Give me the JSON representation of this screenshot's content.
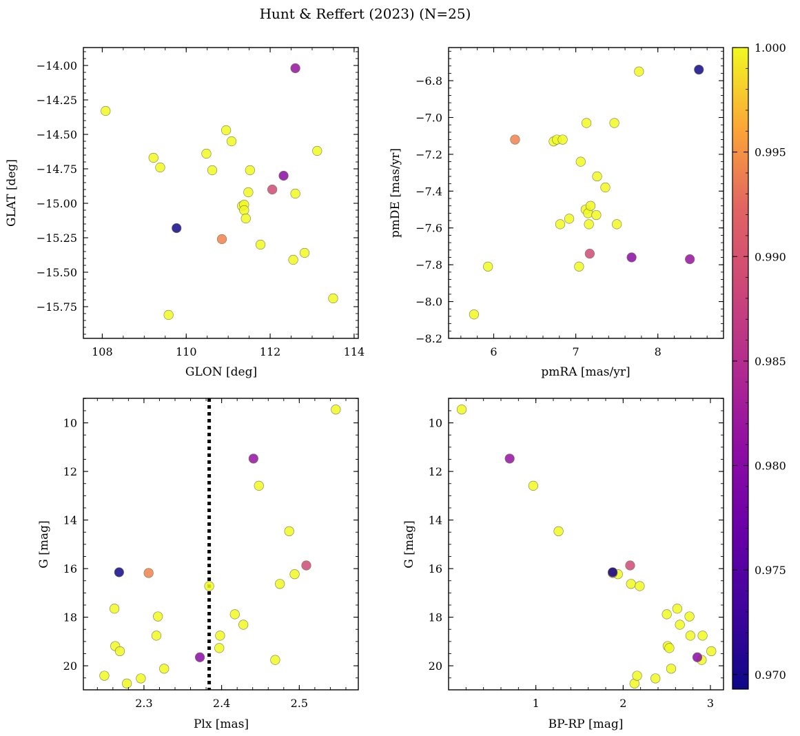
{
  "title": "Hunt & Reffert (2023) (N=25)",
  "colorbar": {
    "min": 0.9693,
    "max": 1.0,
    "ticks": [
      0.97,
      0.975,
      0.98,
      0.985,
      0.99,
      0.995,
      1.0
    ],
    "tick_labels": [
      "0.970",
      "0.975",
      "0.980",
      "0.985",
      "0.990",
      "0.995",
      "1.000"
    ],
    "colormap": "plasma"
  },
  "chart_data": [
    {
      "type": "scatter",
      "xlabel": "GLON [deg]",
      "ylabel": "GLAT [deg]",
      "xlim": [
        107.55,
        114.1
      ],
      "ylim": [
        -15.98,
        -13.87
      ],
      "y_inverted": false,
      "xticks": [
        108,
        110,
        112,
        114
      ],
      "xtick_labels": [
        "108",
        "110",
        "112",
        "114"
      ],
      "yticks": [
        -14.0,
        -14.25,
        -14.5,
        -14.75,
        -15.0,
        -15.25,
        -15.5,
        -15.75
      ],
      "ytick_labels": [
        "−14.00",
        "−14.25",
        "−14.50",
        "−14.75",
        "−15.00",
        "−15.25",
        "−15.50",
        "−15.75"
      ],
      "points": [
        {
          "x": 108.08,
          "y": -14.33,
          "p": 1.0
        },
        {
          "x": 109.22,
          "y": -14.67,
          "p": 1.0
        },
        {
          "x": 109.38,
          "y": -14.74,
          "p": 1.0
        },
        {
          "x": 109.58,
          "y": -15.81,
          "p": 1.0
        },
        {
          "x": 109.77,
          "y": -15.18,
          "p": 0.9695
        },
        {
          "x": 110.48,
          "y": -14.64,
          "p": 1.0
        },
        {
          "x": 110.62,
          "y": -14.76,
          "p": 1.0
        },
        {
          "x": 110.85,
          "y": -15.26,
          "p": 0.9905
        },
        {
          "x": 110.95,
          "y": -14.47,
          "p": 1.0
        },
        {
          "x": 111.08,
          "y": -14.55,
          "p": 1.0
        },
        {
          "x": 111.33,
          "y": -15.02,
          "p": 1.0
        },
        {
          "x": 111.38,
          "y": -15.01,
          "p": 1.0
        },
        {
          "x": 111.38,
          "y": -15.05,
          "p": 1.0
        },
        {
          "x": 111.42,
          "y": -15.11,
          "p": 1.0
        },
        {
          "x": 111.48,
          "y": -14.92,
          "p": 1.0
        },
        {
          "x": 111.52,
          "y": -14.76,
          "p": 1.0
        },
        {
          "x": 111.77,
          "y": -15.3,
          "p": 1.0
        },
        {
          "x": 112.05,
          "y": -14.9,
          "p": 0.985
        },
        {
          "x": 112.32,
          "y": -14.8,
          "p": 0.978
        },
        {
          "x": 112.55,
          "y": -15.41,
          "p": 1.0
        },
        {
          "x": 112.6,
          "y": -14.02,
          "p": 0.979
        },
        {
          "x": 112.6,
          "y": -14.93,
          "p": 1.0
        },
        {
          "x": 112.82,
          "y": -15.36,
          "p": 1.0
        },
        {
          "x": 113.12,
          "y": -14.62,
          "p": 1.0
        },
        {
          "x": 113.5,
          "y": -15.69,
          "p": 1.0
        }
      ]
    },
    {
      "type": "scatter",
      "xlabel": "pmRA [mas/yr]",
      "ylabel": "pmDE [mas/yr]",
      "xlim": [
        5.45,
        8.8
      ],
      "ylim": [
        -8.2,
        -6.62
      ],
      "y_inverted": false,
      "xticks": [
        6,
        7,
        8
      ],
      "xtick_labels": [
        "6",
        "7",
        "8"
      ],
      "yticks": [
        -6.8,
        -7.0,
        -7.2,
        -7.4,
        -7.6,
        -7.8,
        -8.0,
        -8.2
      ],
      "ytick_labels": [
        "−6.8",
        "−7.0",
        "−7.2",
        "−7.4",
        "−7.6",
        "−7.8",
        "−8.0",
        "−8.2"
      ],
      "points": [
        {
          "x": 5.76,
          "y": -8.07,
          "p": 1.0
        },
        {
          "x": 5.93,
          "y": -7.81,
          "p": 1.0
        },
        {
          "x": 6.26,
          "y": -7.12,
          "p": 0.9905
        },
        {
          "x": 6.73,
          "y": -7.13,
          "p": 1.0
        },
        {
          "x": 6.77,
          "y": -7.12,
          "p": 1.0
        },
        {
          "x": 6.81,
          "y": -7.58,
          "p": 1.0
        },
        {
          "x": 6.84,
          "y": -7.12,
          "p": 1.0
        },
        {
          "x": 6.92,
          "y": -7.55,
          "p": 1.0
        },
        {
          "x": 7.04,
          "y": -7.81,
          "p": 1.0
        },
        {
          "x": 7.06,
          "y": -7.24,
          "p": 1.0
        },
        {
          "x": 7.12,
          "y": -7.5,
          "p": 1.0
        },
        {
          "x": 7.13,
          "y": -7.03,
          "p": 1.0
        },
        {
          "x": 7.15,
          "y": -7.52,
          "p": 1.0
        },
        {
          "x": 7.16,
          "y": -7.58,
          "p": 1.0
        },
        {
          "x": 7.17,
          "y": -7.74,
          "p": 0.985
        },
        {
          "x": 7.18,
          "y": -7.48,
          "p": 1.0
        },
        {
          "x": 7.25,
          "y": -7.53,
          "p": 1.0
        },
        {
          "x": 7.26,
          "y": -7.32,
          "p": 1.0
        },
        {
          "x": 7.36,
          "y": -7.38,
          "p": 1.0
        },
        {
          "x": 7.47,
          "y": -7.03,
          "p": 1.0
        },
        {
          "x": 7.5,
          "y": -7.58,
          "p": 1.0
        },
        {
          "x": 7.68,
          "y": -7.76,
          "p": 0.978
        },
        {
          "x": 7.77,
          "y": -6.75,
          "p": 1.0
        },
        {
          "x": 8.39,
          "y": -7.77,
          "p": 0.979
        },
        {
          "x": 8.5,
          "y": -6.74,
          "p": 0.9695
        }
      ]
    },
    {
      "type": "scatter",
      "xlabel": "Plx [mas]",
      "ylabel": "G [mag]",
      "xlim": [
        2.222,
        2.576
      ],
      "ylim": [
        20.99,
        8.99
      ],
      "y_inverted": true,
      "xticks": [
        2.3,
        2.4,
        2.5
      ],
      "xtick_labels": [
        "2.3",
        "2.4",
        "2.5"
      ],
      "yticks": [
        10,
        12,
        14,
        16,
        18,
        20
      ],
      "ytick_labels": [
        "10",
        "12",
        "14",
        "16",
        "18",
        "20"
      ],
      "vline": 2.384,
      "points": [
        {
          "x": 2.249,
          "y": 20.41,
          "p": 1.0
        },
        {
          "x": 2.262,
          "y": 17.65,
          "p": 1.0
        },
        {
          "x": 2.263,
          "y": 19.19,
          "p": 1.0
        },
        {
          "x": 2.268,
          "y": 16.15,
          "p": 0.9695
        },
        {
          "x": 2.269,
          "y": 19.4,
          "p": 1.0
        },
        {
          "x": 2.278,
          "y": 20.73,
          "p": 1.0
        },
        {
          "x": 2.296,
          "y": 20.52,
          "p": 1.0
        },
        {
          "x": 2.306,
          "y": 16.18,
          "p": 0.9905
        },
        {
          "x": 2.316,
          "y": 18.76,
          "p": 1.0
        },
        {
          "x": 2.318,
          "y": 17.97,
          "p": 1.0
        },
        {
          "x": 2.326,
          "y": 20.12,
          "p": 1.0
        },
        {
          "x": 2.372,
          "y": 19.65,
          "p": 0.978
        },
        {
          "x": 2.384,
          "y": 16.72,
          "p": 1.0
        },
        {
          "x": 2.397,
          "y": 19.27,
          "p": 1.0
        },
        {
          "x": 2.398,
          "y": 18.76,
          "p": 1.0
        },
        {
          "x": 2.417,
          "y": 17.88,
          "p": 1.0
        },
        {
          "x": 2.428,
          "y": 18.31,
          "p": 1.0
        },
        {
          "x": 2.441,
          "y": 11.47,
          "p": 0.979
        },
        {
          "x": 2.448,
          "y": 12.59,
          "p": 1.0
        },
        {
          "x": 2.469,
          "y": 19.76,
          "p": 1.0
        },
        {
          "x": 2.475,
          "y": 16.63,
          "p": 1.0
        },
        {
          "x": 2.487,
          "y": 14.46,
          "p": 1.0
        },
        {
          "x": 2.494,
          "y": 16.23,
          "p": 1.0
        },
        {
          "x": 2.509,
          "y": 15.87,
          "p": 0.985
        },
        {
          "x": 2.547,
          "y": 9.45,
          "p": 1.0
        }
      ]
    },
    {
      "type": "scatter",
      "xlabel": "BP-RP [mag]",
      "ylabel": "G [mag]",
      "xlim": [
        0.0,
        3.15
      ],
      "ylim": [
        20.99,
        8.99
      ],
      "y_inverted": true,
      "xticks": [
        1,
        2,
        3
      ],
      "xtick_labels": [
        "1",
        "2",
        "3"
      ],
      "yticks": [
        10,
        12,
        14,
        16,
        18,
        20
      ],
      "ytick_labels": [
        "10",
        "12",
        "14",
        "16",
        "18",
        "20"
      ],
      "points": [
        {
          "x": 0.15,
          "y": 9.45,
          "p": 1.0
        },
        {
          "x": 0.97,
          "y": 12.59,
          "p": 1.0
        },
        {
          "x": 1.26,
          "y": 14.46,
          "p": 1.0
        },
        {
          "x": 1.88,
          "y": 16.18,
          "p": 0.9905
        },
        {
          "x": 1.94,
          "y": 16.23,
          "p": 1.0
        },
        {
          "x": 2.09,
          "y": 16.63,
          "p": 1.0
        },
        {
          "x": 2.13,
          "y": 20.73,
          "p": 1.0
        },
        {
          "x": 2.16,
          "y": 20.41,
          "p": 1.0
        },
        {
          "x": 2.19,
          "y": 16.72,
          "p": 1.0
        },
        {
          "x": 2.37,
          "y": 20.52,
          "p": 1.0
        },
        {
          "x": 2.5,
          "y": 17.88,
          "p": 1.0
        },
        {
          "x": 2.51,
          "y": 19.19,
          "p": 1.0
        },
        {
          "x": 2.53,
          "y": 19.27,
          "p": 1.0
        },
        {
          "x": 2.55,
          "y": 20.12,
          "p": 1.0
        },
        {
          "x": 2.62,
          "y": 17.65,
          "p": 1.0
        },
        {
          "x": 2.65,
          "y": 18.31,
          "p": 1.0
        },
        {
          "x": 2.76,
          "y": 17.97,
          "p": 1.0
        },
        {
          "x": 2.77,
          "y": 18.76,
          "p": 1.0
        },
        {
          "x": 2.9,
          "y": 19.76,
          "p": 1.0
        },
        {
          "x": 2.91,
          "y": 18.76,
          "p": 1.0
        },
        {
          "x": 3.01,
          "y": 19.4,
          "p": 1.0
        },
        {
          "x": 1.88,
          "y": 16.15,
          "p": 0.9695
        },
        {
          "x": 2.08,
          "y": 15.87,
          "p": 0.985
        },
        {
          "x": 2.85,
          "y": 19.65,
          "p": 0.978
        },
        {
          "x": 0.7,
          "y": 11.47,
          "p": 0.979
        }
      ]
    }
  ]
}
